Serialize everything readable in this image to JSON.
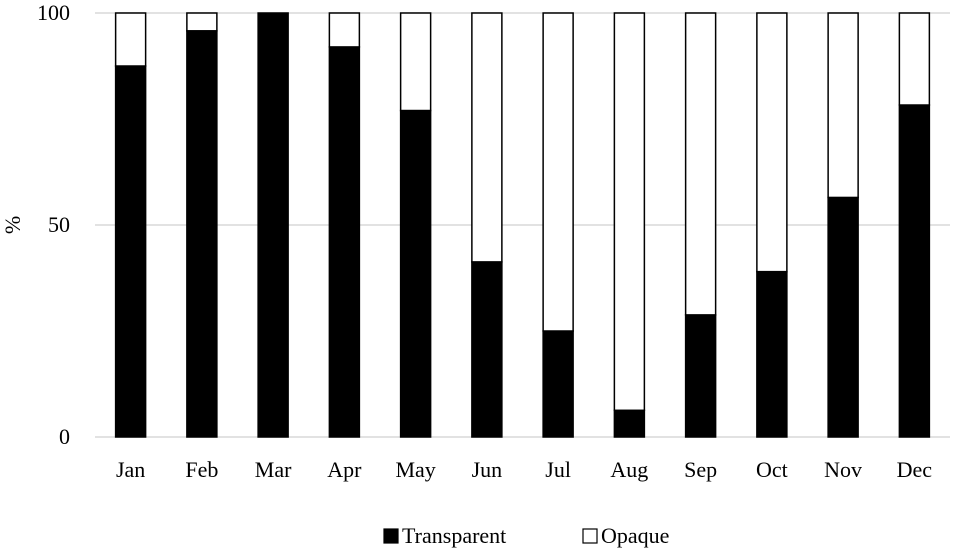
{
  "chart_data": {
    "type": "bar",
    "stacked": true,
    "categories": [
      "Jan",
      "Feb",
      "Mar",
      "Apr",
      "May",
      "Jun",
      "Jul",
      "Aug",
      "Sep",
      "Oct",
      "Nov",
      "Dec"
    ],
    "series": [
      {
        "name": "Transparent",
        "values": [
          87.5,
          95.8,
          100,
          92.0,
          77.0,
          41.3,
          25.0,
          6.3,
          28.8,
          39.0,
          56.5,
          78.3
        ]
      },
      {
        "name": "Opaque",
        "values": [
          12.5,
          4.2,
          0,
          8.0,
          23.0,
          58.7,
          75.0,
          93.7,
          71.2,
          61.0,
          43.5,
          21.7
        ]
      }
    ],
    "yticks": [
      0,
      50,
      100
    ],
    "ylabel": "%",
    "xlabel": "",
    "title": "",
    "ylim": [
      0,
      100
    ],
    "grid": true,
    "legend": "bottom-center",
    "colors": {
      "Transparent": "#000000",
      "Opaque": "#ffffff",
      "outline": "#000000",
      "grid": "#d9d9d9"
    }
  }
}
